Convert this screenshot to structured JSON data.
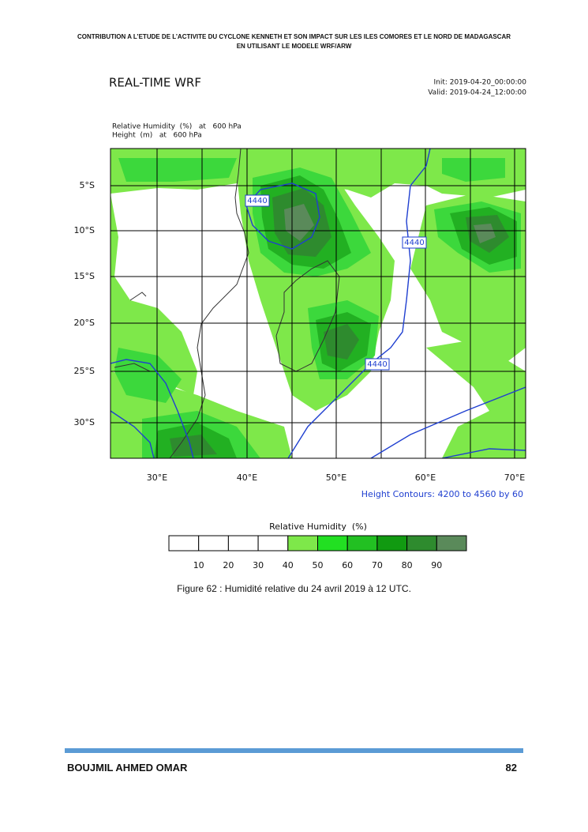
{
  "header": {
    "line1": "CONTRIBUTION A L’ETUDE DE L’ACTIVITE DU CYCLONE KENNETH ET SON IMPACT SUR LES ILES COMORES ET LE NORD DE MADAGASCAR",
    "line2": "EN UTILISANT LE MODELE WRF/ARW"
  },
  "figure": {
    "title": "REAL-TIME WRF",
    "init": "Init: 2019-04-20_00:00:00",
    "valid": "Valid: 2019-04-24_12:00:00",
    "fields": [
      "Relative Humidity  (%)   at   600 hPa",
      "Height  (m)   at   600 hPa"
    ],
    "lat_labels": [
      "5°S",
      "10°S",
      "15°S",
      "20°S",
      "25°S",
      "30°S"
    ],
    "lon_labels": [
      "30°E",
      "40°E",
      "50°E",
      "60°E",
      "70°E"
    ],
    "contour_labels": [
      "4440",
      "4440",
      "4440"
    ],
    "contour_note": "Height Contours: 4200 to 4560 by 60",
    "colorbar_title": "Relative Humidity  (%)",
    "colorbar_labels": [
      10,
      20,
      30,
      40,
      50,
      60,
      70,
      80,
      90
    ]
  },
  "caption": "Figure 62 : Humidité relative du 24 avril 2019 à 12 UTC.",
  "footer": {
    "author": "BOUJMIL AHMED OMAR",
    "page": "82"
  }
}
